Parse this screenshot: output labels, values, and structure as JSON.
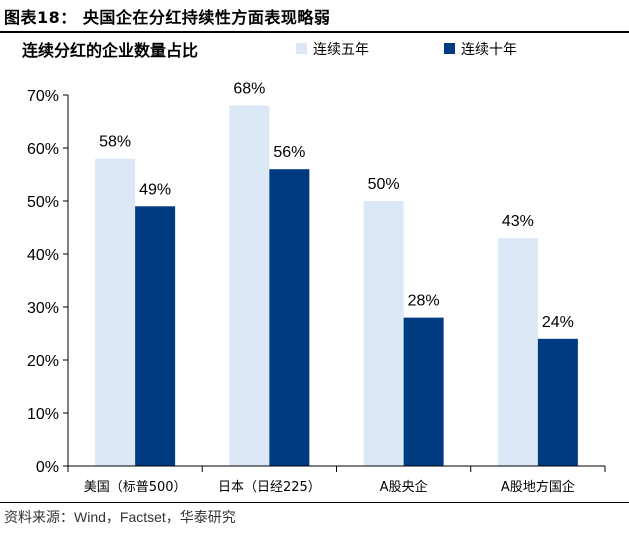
{
  "figure": {
    "title": "图表18： 央国企在分红持续性方面表现略弱",
    "source": "资料来源：Wind，Factset，华泰研究"
  },
  "colors": {
    "series_1": "#dce8f5",
    "series_2": "#003a80",
    "axis": "#000000"
  },
  "chart_data": {
    "type": "bar",
    "title": "连续分红的企业数量占比",
    "categories": [
      "美国（标普500）",
      "日本（日经225）",
      "A股央企",
      "A股地方国企"
    ],
    "series": [
      {
        "name": "连续五年",
        "values": [
          58,
          68,
          50,
          43
        ],
        "labels": [
          "58%",
          "68%",
          "50%",
          "43%"
        ]
      },
      {
        "name": "连续十年",
        "values": [
          49,
          56,
          28,
          24
        ],
        "labels": [
          "49%",
          "56%",
          "28%",
          "24%"
        ]
      }
    ],
    "ylim": [
      0,
      70
    ],
    "yticks": [
      "0%",
      "10%",
      "20%",
      "30%",
      "40%",
      "50%",
      "60%",
      "70%"
    ],
    "legend_position": "top-right",
    "grid": false
  }
}
